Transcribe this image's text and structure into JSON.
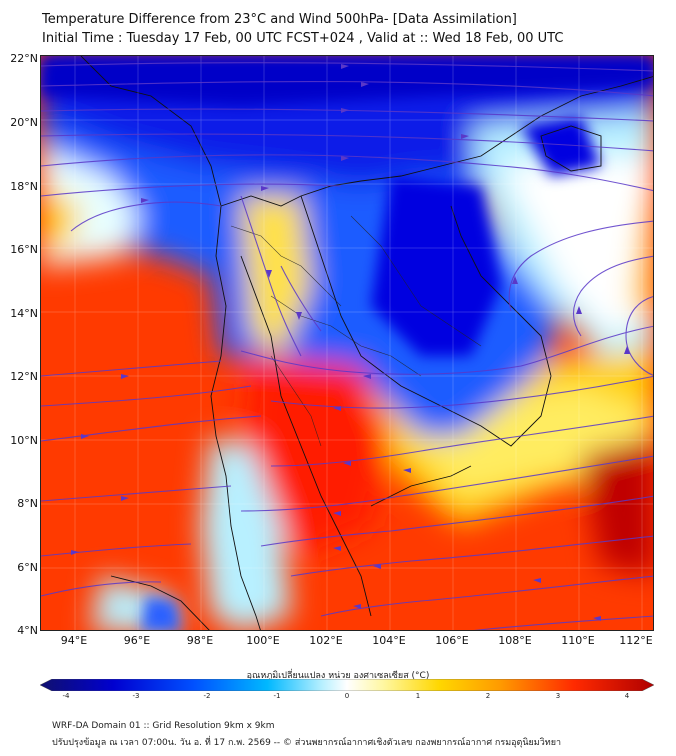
{
  "header": {
    "title": "Temperature Difference from 23°C and Wind 500hPa- [Data Assimilation]",
    "subtitle": "Initial Time : Tuesday 17 Feb, 00 UTC FCST+024 , Valid at ::  Wed 18 Feb, 00 UTC"
  },
  "map": {
    "lat_labels": [
      "22°N",
      "20°N",
      "18°N",
      "16°N",
      "14°N",
      "12°N",
      "10°N",
      "8°N",
      "6°N",
      "4°N"
    ],
    "lon_labels": [
      "94°E",
      "96°E",
      "98°E",
      "100°E",
      "102°E",
      "104°E",
      "106°E",
      "108°E",
      "110°E",
      "112°E"
    ],
    "lat_range": [
      4,
      22
    ],
    "lon_range": [
      93,
      112.5
    ]
  },
  "colorbar": {
    "title": "อุณหภูมิเปลี่ยนแปลง หน่วย องศาเซลเซียส (°C)",
    "ticks": [
      "-4",
      "-3",
      "-2",
      "-1",
      "0",
      "1",
      "2",
      "3",
      "4"
    ],
    "range": [
      -4,
      4
    ],
    "colors": [
      "#10106e",
      "#0000d0",
      "#0050ff",
      "#00b8ff",
      "#b8f0ff",
      "#ffffff",
      "#fff7a0",
      "#ffd700",
      "#ff9a00",
      "#ff2a00",
      "#b00000"
    ]
  },
  "footer": {
    "line1": "WRF-DA Domain 01 :: Grid Resolution 9km x 9km",
    "line2": "ปรับปรุงข้อมูล ณ เวลา 07:00น. วัน อ. ที่ 17 ก.พ. 2569 -- © ส่วนพยากรณ์อากาศเชิงตัวเลข กองพยากรณ์อากาศ กรมอุตุนิยมวิทยา"
  }
}
